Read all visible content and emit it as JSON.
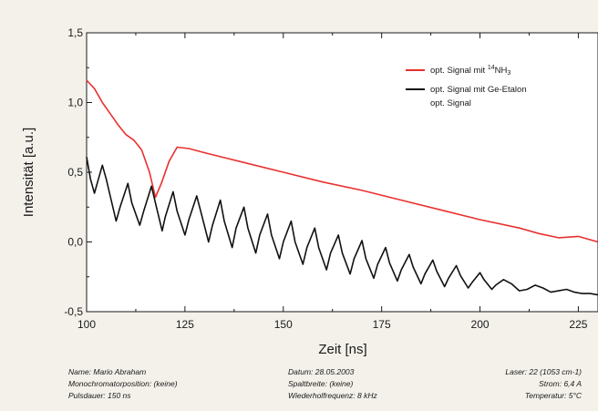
{
  "chart_data": {
    "type": "line",
    "xlabel": "Zeit [ns]",
    "ylabel": "Intensität [a.u.]",
    "xlim": [
      100,
      230
    ],
    "ylim": [
      -0.5,
      1.5
    ],
    "x_ticks": [
      "100",
      "125",
      "150",
      "175",
      "200",
      "225"
    ],
    "y_ticks": [
      "-0,5",
      "0,0",
      "0,5",
      "1,0",
      "1,5"
    ],
    "grid": false,
    "legend_position": "top-right",
    "legend": {
      "nh3_prefix": "opt. Signal mit ",
      "nh3_sup": "14",
      "nh3_main": "NH",
      "nh3_sub": "3",
      "etalon_line1": "opt. Signal mit Ge-Etalon",
      "etalon_line2": "opt. Signal"
    },
    "series": [
      {
        "color": "#e8312f",
        "points": [
          [
            100,
            1.16
          ],
          [
            102,
            1.1
          ],
          [
            104,
            1.0
          ],
          [
            106,
            0.92
          ],
          [
            108,
            0.84
          ],
          [
            110,
            0.77
          ],
          [
            112,
            0.73
          ],
          [
            114,
            0.66
          ],
          [
            116,
            0.5
          ],
          [
            117.5,
            0.32
          ],
          [
            119,
            0.42
          ],
          [
            121,
            0.58
          ],
          [
            123,
            0.68
          ],
          [
            126,
            0.67
          ],
          [
            130,
            0.64
          ],
          [
            140,
            0.57
          ],
          [
            150,
            0.5
          ],
          [
            160,
            0.43
          ],
          [
            170,
            0.37
          ],
          [
            180,
            0.3
          ],
          [
            190,
            0.23
          ],
          [
            200,
            0.16
          ],
          [
            210,
            0.1
          ],
          [
            215,
            0.06
          ],
          [
            220,
            0.03
          ],
          [
            225,
            0.04
          ],
          [
            230,
            0.0
          ]
        ]
      },
      {
        "color": "#111111",
        "points": [
          [
            100,
            0.61
          ],
          [
            101,
            0.45
          ],
          [
            102,
            0.35
          ],
          [
            103,
            0.45
          ],
          [
            104,
            0.55
          ],
          [
            105,
            0.45
          ],
          [
            106,
            0.33
          ],
          [
            107.5,
            0.15
          ],
          [
            108.5,
            0.25
          ],
          [
            110.5,
            0.42
          ],
          [
            111.5,
            0.28
          ],
          [
            113.5,
            0.12
          ],
          [
            114.5,
            0.22
          ],
          [
            116.5,
            0.4
          ],
          [
            117.5,
            0.28
          ],
          [
            119.2,
            0.08
          ],
          [
            120,
            0.18
          ],
          [
            122,
            0.36
          ],
          [
            123,
            0.22
          ],
          [
            125,
            0.05
          ],
          [
            126,
            0.16
          ],
          [
            128,
            0.33
          ],
          [
            129.2,
            0.2
          ],
          [
            131,
            0.0
          ],
          [
            132,
            0.12
          ],
          [
            134,
            0.3
          ],
          [
            135,
            0.15
          ],
          [
            137,
            -0.04
          ],
          [
            138,
            0.1
          ],
          [
            140,
            0.25
          ],
          [
            141,
            0.1
          ],
          [
            143,
            -0.08
          ],
          [
            144,
            0.05
          ],
          [
            146,
            0.2
          ],
          [
            147,
            0.05
          ],
          [
            149,
            -0.12
          ],
          [
            150,
            0.0
          ],
          [
            152,
            0.15
          ],
          [
            153,
            0.0
          ],
          [
            155,
            -0.16
          ],
          [
            156,
            -0.04
          ],
          [
            158,
            0.1
          ],
          [
            159,
            -0.04
          ],
          [
            161,
            -0.2
          ],
          [
            162,
            -0.08
          ],
          [
            164,
            0.05
          ],
          [
            165,
            -0.08
          ],
          [
            167,
            -0.23
          ],
          [
            168,
            -0.12
          ],
          [
            170,
            0.01
          ],
          [
            171,
            -0.12
          ],
          [
            173,
            -0.26
          ],
          [
            174,
            -0.16
          ],
          [
            176,
            -0.04
          ],
          [
            177,
            -0.15
          ],
          [
            179,
            -0.28
          ],
          [
            180,
            -0.2
          ],
          [
            182,
            -0.09
          ],
          [
            183,
            -0.18
          ],
          [
            185,
            -0.3
          ],
          [
            186,
            -0.23
          ],
          [
            188,
            -0.13
          ],
          [
            189,
            -0.21
          ],
          [
            191,
            -0.32
          ],
          [
            192,
            -0.26
          ],
          [
            194,
            -0.17
          ],
          [
            195,
            -0.24
          ],
          [
            197,
            -0.33
          ],
          [
            198,
            -0.29
          ],
          [
            200,
            -0.22
          ],
          [
            201,
            -0.27
          ],
          [
            203,
            -0.34
          ],
          [
            204,
            -0.31
          ],
          [
            206,
            -0.27
          ],
          [
            208,
            -0.3
          ],
          [
            210,
            -0.35
          ],
          [
            212,
            -0.34
          ],
          [
            214,
            -0.31
          ],
          [
            216,
            -0.33
          ],
          [
            218,
            -0.36
          ],
          [
            220,
            -0.35
          ],
          [
            222,
            -0.34
          ],
          [
            224,
            -0.36
          ],
          [
            226,
            -0.37
          ],
          [
            228,
            -0.37
          ],
          [
            230,
            -0.38
          ]
        ]
      }
    ]
  },
  "footer": {
    "left": [
      "Name: Mario Abraham",
      "Monochromatorposition: (keine)",
      "Pulsdauer: 150 ns"
    ],
    "middle": [
      "Datum: 28.05.2003",
      "Spaltbreite: (keine)",
      "Wiederholfrequenz: 8 kHz"
    ],
    "right": [
      "Laser: 22 (1053 cm-1)",
      "Strom: 6,4 A",
      "Temperatur: 5°C"
    ]
  }
}
